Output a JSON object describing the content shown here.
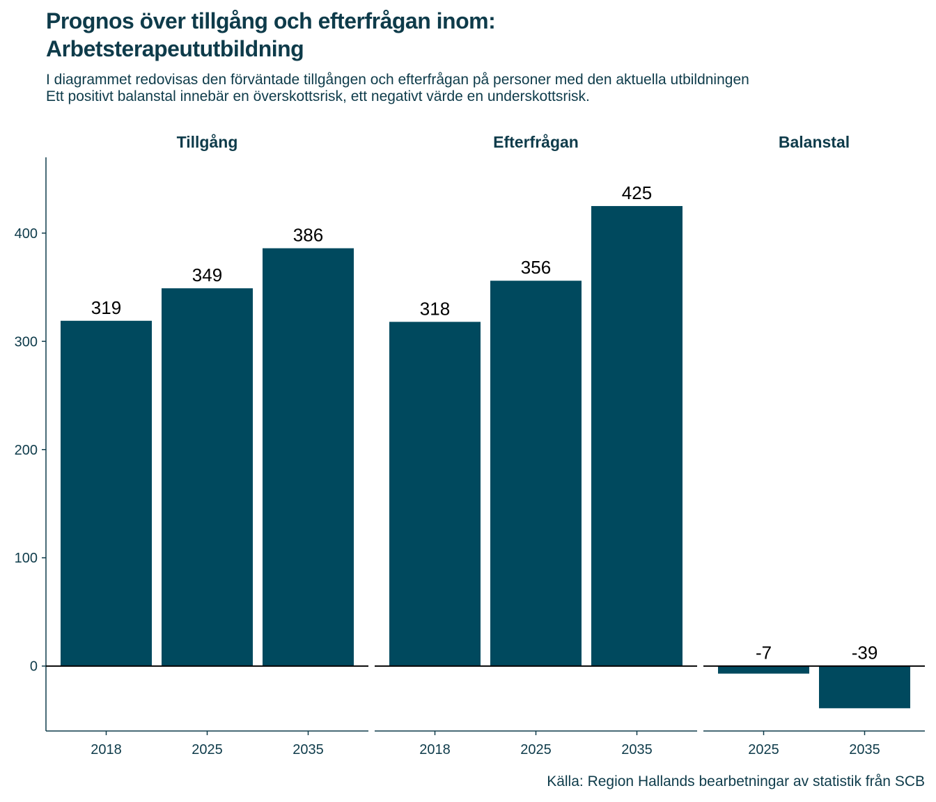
{
  "title_lines": [
    "Prognos över tillgång och efterfrågan inom:",
    "Arbetsterapeututbildning"
  ],
  "subtitle_lines": [
    "I diagrammet redovisas den förväntade tillgången och efterfrågan på personer med den aktuella utbildningen",
    "Ett positivt balanstal innebär en överskottsrisk, ett negativt värde en underskottsrisk."
  ],
  "caption": "Källa: Region Hallands bearbetningar av statistik från SCB",
  "colors": {
    "bar": "#00495e",
    "text": "#0e3b4a",
    "axis": "#0e3b4a",
    "label": "#000000"
  },
  "chart_data": [
    {
      "type": "bar",
      "panel": "Tillgång",
      "categories": [
        "2018",
        "2025",
        "2035"
      ],
      "values": [
        319,
        349,
        386
      ],
      "ylim": [
        -60,
        470
      ],
      "yticks": [
        0,
        100,
        200,
        300,
        400
      ]
    },
    {
      "type": "bar",
      "panel": "Efterfrågan",
      "categories": [
        "2018",
        "2025",
        "2035"
      ],
      "values": [
        318,
        356,
        425
      ],
      "ylim": [
        -60,
        470
      ],
      "yticks": [
        0,
        100,
        200,
        300,
        400
      ]
    },
    {
      "type": "bar",
      "panel": "Balanstal",
      "categories": [
        "2025",
        "2035"
      ],
      "values": [
        -7,
        -39
      ],
      "ylim": [
        -60,
        470
      ],
      "yticks": [
        0,
        100,
        200,
        300,
        400
      ]
    }
  ]
}
